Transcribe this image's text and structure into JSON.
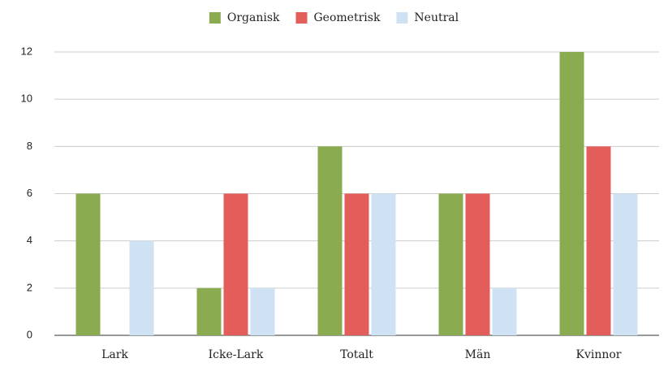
{
  "chart_data": {
    "type": "bar",
    "categories": [
      "Lark",
      "Icke-Lark",
      "Totalt",
      "Män",
      "Kvinnor"
    ],
    "series": [
      {
        "name": "Organisk",
        "color": "#8aab4f",
        "values": [
          6,
          2,
          8,
          6,
          12
        ]
      },
      {
        "name": "Geometrisk",
        "color": "#e35d5a",
        "values": [
          0,
          6,
          6,
          6,
          8
        ]
      },
      {
        "name": "Neutral",
        "color": "#cfe2f3",
        "values": [
          4,
          2,
          6,
          2,
          6
        ]
      }
    ],
    "ylim": [
      0,
      12
    ],
    "yticks": [
      0,
      2,
      4,
      6,
      8,
      10,
      12
    ],
    "grid": true,
    "legend": "top"
  }
}
